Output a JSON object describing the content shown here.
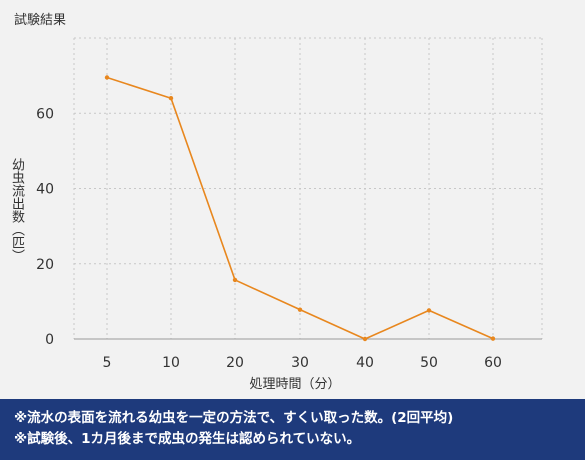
{
  "chart_data": {
    "type": "line",
    "title": "試験結果",
    "xlabel": "処理時間（分）",
    "ylabel": "幼虫流出数（匹）",
    "categories": [
      "5",
      "10",
      "20",
      "30",
      "40",
      "50",
      "60"
    ],
    "series": [
      {
        "values": [
          69.5,
          64,
          15.7,
          7.8,
          0,
          7.6,
          0.1
        ]
      }
    ],
    "ylim": [
      0,
      80
    ],
    "yticks": [
      0,
      20,
      40,
      60
    ],
    "grid": true,
    "line_color": "#e8871e"
  },
  "notes": [
    "※流水の表面を流れる幼虫を一定の方法で、すくい取った数。(2回平均)",
    "※試験後、1カ月後まで成虫の発生は認められていない。"
  ],
  "colors": {
    "background": "#f2f2f2",
    "note_bar": "#1e3a7c",
    "grid": "#c8c8c8"
  }
}
